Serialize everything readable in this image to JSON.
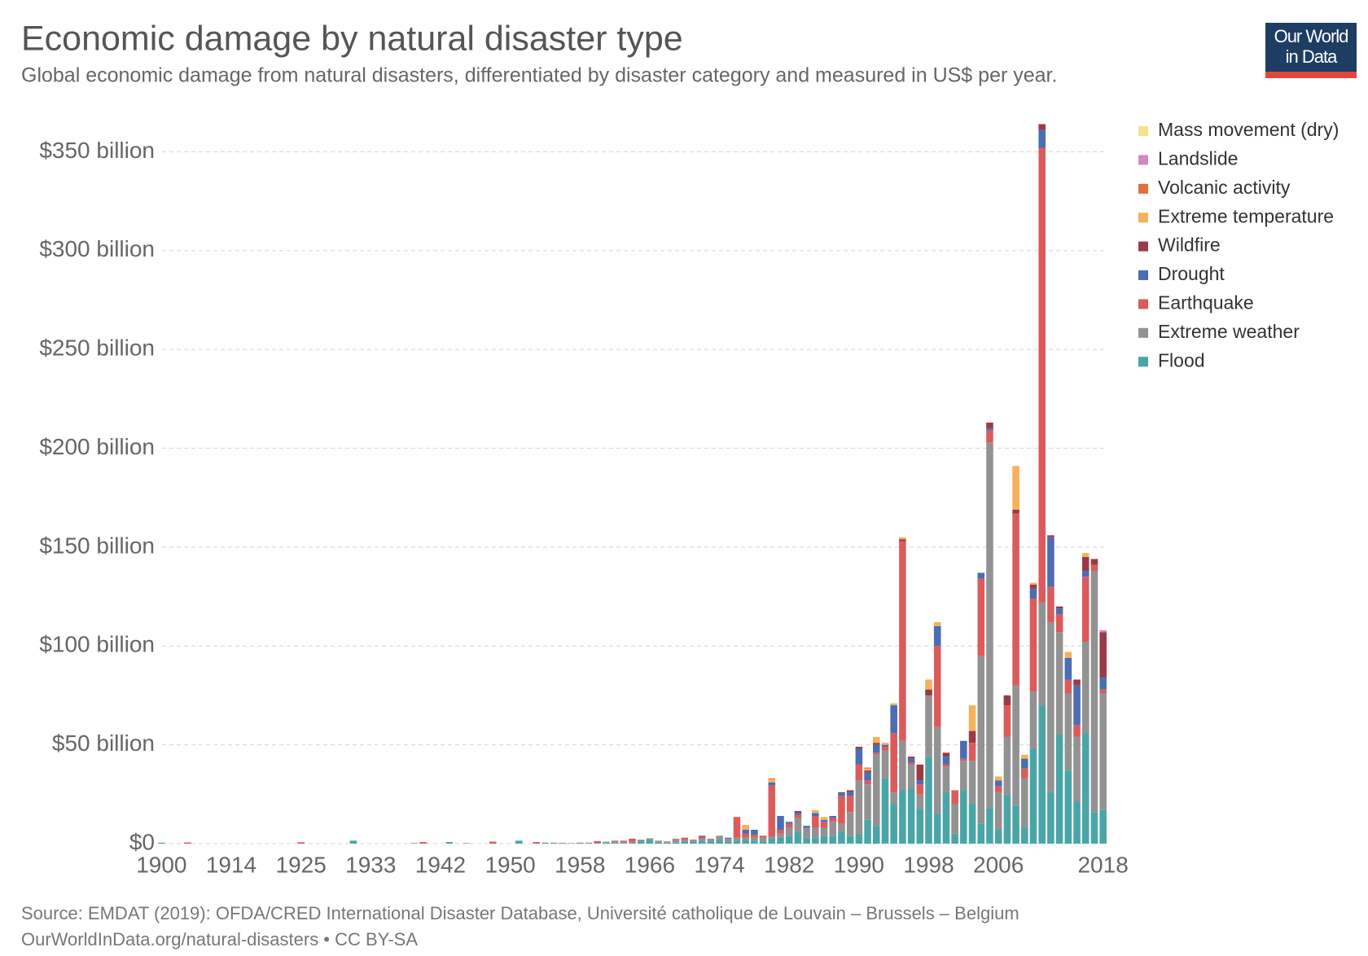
{
  "chart_data": {
    "type": "stacked-bar",
    "title": "Economic damage by natural disaster type",
    "subtitle": "Global economic damage from natural disasters, differentiated by disaster category and measured in US$ per year.",
    "source": "Source: EMDAT (2019): OFDA/CRED International Disaster Database, Université catholique de Louvain – Brussels – Belgium",
    "footer": "OurWorldInData.org/natural-disasters • CC BY-SA",
    "logo": [
      "Our World",
      "in Data"
    ],
    "legend": "right",
    "grid": true,
    "ylim": [
      0,
      365
    ],
    "yticks": [
      {
        "value": 0,
        "label": "$0"
      },
      {
        "value": 50,
        "label": "$50 billion"
      },
      {
        "value": 100,
        "label": "$100 billion"
      },
      {
        "value": 150,
        "label": "$150 billion"
      },
      {
        "value": 200,
        "label": "$200 billion"
      },
      {
        "value": 250,
        "label": "$250 billion"
      },
      {
        "value": 300,
        "label": "$300 billion"
      },
      {
        "value": 350,
        "label": "$350 billion"
      }
    ],
    "categories": [
      "1900",
      null,
      null,
      null,
      null,
      null,
      null,
      null,
      "1914",
      null,
      null,
      null,
      null,
      null,
      null,
      null,
      "1925",
      null,
      null,
      null,
      null,
      null,
      null,
      null,
      "1933",
      null,
      null,
      null,
      null,
      null,
      null,
      null,
      "1942",
      null,
      null,
      null,
      null,
      null,
      null,
      null,
      "1950",
      null,
      null,
      null,
      null,
      null,
      null,
      null,
      "1958",
      null,
      null,
      null,
      null,
      null,
      null,
      null,
      "1966",
      null,
      null,
      null,
      null,
      null,
      null,
      null,
      "1974",
      null,
      null,
      null,
      null,
      null,
      null,
      null,
      "1982",
      null,
      null,
      null,
      null,
      null,
      null,
      null,
      "1990",
      null,
      null,
      null,
      null,
      null,
      null,
      null,
      "1998",
      null,
      null,
      null,
      null,
      null,
      null,
      null,
      "2006",
      null,
      null,
      null,
      null,
      null,
      null,
      null,
      null,
      null,
      null,
      null,
      "2018"
    ],
    "series": [
      {
        "name": "Flood",
        "color": "#4aa5a7",
        "values": [
          0.5,
          0,
          0,
          0,
          0,
          0,
          0,
          0,
          0,
          0,
          0,
          0,
          0,
          0,
          0,
          0,
          0,
          0,
          0,
          0,
          0,
          0,
          1.5,
          0,
          0,
          0,
          0,
          0,
          0,
          0.3,
          0,
          0,
          0,
          0.8,
          0,
          0,
          0,
          0,
          0,
          0,
          0,
          1.5,
          0,
          0,
          0.5,
          0,
          0,
          0,
          0.2,
          0,
          0.3,
          0.5,
          0.5,
          0,
          0,
          1,
          2,
          0.5,
          0.5,
          0.5,
          1,
          1,
          1.5,
          1,
          2,
          1,
          1.5,
          2,
          1.5,
          1,
          2.5,
          3,
          4,
          6,
          3,
          3,
          4,
          4,
          6,
          4,
          5,
          12,
          9,
          33,
          20,
          27,
          28,
          18,
          44,
          15,
          26,
          5,
          27,
          20,
          10,
          18,
          7,
          25,
          19,
          8,
          48,
          70,
          26,
          55,
          37,
          21,
          56,
          16,
          17
        ]
      },
      {
        "name": "Extreme weather",
        "color": "#929292",
        "values": [
          0,
          0,
          0,
          0,
          0,
          0,
          0,
          0,
          0,
          0,
          0,
          0,
          0,
          0,
          0,
          0,
          0,
          0,
          0,
          0,
          0,
          0,
          0,
          0,
          0,
          0,
          0,
          0,
          0,
          0,
          0,
          0,
          0,
          0,
          0,
          0.3,
          0,
          0,
          0,
          0,
          0,
          0,
          0,
          0,
          0,
          0.5,
          0.4,
          0.3,
          0.3,
          0.5,
          0,
          0.5,
          0.5,
          1,
          1,
          1,
          0.7,
          1,
          0.3,
          2,
          1,
          0.5,
          1,
          1.5,
          2,
          1.5,
          1.5,
          1,
          1.5,
          2,
          1,
          2,
          4,
          7,
          5,
          5,
          4,
          7,
          4,
          12,
          27,
          18,
          36,
          14,
          6,
          25,
          12,
          7,
          31,
          44,
          13,
          15,
          15,
          22,
          85,
          185,
          19,
          29,
          61,
          25,
          29,
          52,
          86,
          52,
          39,
          33,
          46,
          122,
          59
        ]
      },
      {
        "name": "Earthquake",
        "color": "#db5b5b",
        "values": [
          0,
          0,
          0,
          0.6,
          0,
          0,
          0,
          0,
          0,
          0,
          0,
          0,
          0,
          0,
          0,
          0,
          0.7,
          0,
          0,
          0,
          0,
          0,
          0,
          0,
          0,
          0,
          0,
          0,
          0,
          0,
          0.8,
          0,
          0,
          0,
          0,
          0,
          0,
          0,
          1,
          0,
          0,
          0,
          0,
          0.8,
          0,
          0,
          0,
          0,
          0,
          0,
          1,
          0,
          0.5,
          0.5,
          1.5,
          0,
          0,
          0,
          0.3,
          0,
          1,
          0.5,
          1,
          0,
          0,
          0,
          10.5,
          2,
          1.5,
          1,
          26,
          2,
          2,
          1.5,
          0,
          6,
          3,
          2,
          14,
          8,
          8,
          2,
          1,
          2,
          30,
          101,
          1,
          5,
          0,
          41,
          1,
          7,
          1,
          9,
          39,
          6,
          3,
          16,
          87,
          5,
          47,
          230,
          18,
          9,
          7,
          6,
          33,
          3,
          2
        ]
      },
      {
        "name": "Drought",
        "color": "#4a6db3",
        "values": [
          0,
          0,
          0,
          0,
          0,
          0,
          0,
          0,
          0,
          0,
          0,
          0,
          0,
          0,
          0,
          0,
          0,
          0,
          0,
          0,
          0,
          0,
          0,
          0,
          0,
          0,
          0,
          0,
          0,
          0,
          0,
          0,
          0,
          0,
          0,
          0,
          0,
          0,
          0,
          0,
          0,
          0,
          0,
          0,
          0,
          0,
          0,
          0,
          0,
          0,
          0,
          0,
          0,
          0,
          0,
          0,
          0,
          0,
          0,
          0,
          0,
          0,
          0.5,
          0,
          0,
          0.5,
          0,
          2,
          2.5,
          0,
          1.5,
          7,
          1,
          1,
          1,
          1.5,
          1,
          1,
          1.5,
          2,
          8,
          4,
          4,
          1,
          14,
          0,
          2,
          2,
          0,
          10,
          4,
          0,
          9,
          0,
          3,
          1,
          3,
          0,
          0,
          5,
          5,
          9,
          25,
          3,
          11,
          20,
          3,
          0,
          6
        ]
      },
      {
        "name": "Wildfire",
        "color": "#9a3a48",
        "values": [
          0,
          0,
          0,
          0,
          0,
          0,
          0,
          0,
          0,
          0,
          0,
          0,
          0,
          0,
          0,
          0,
          0,
          0,
          0,
          0,
          0,
          0,
          0,
          0,
          0,
          0,
          0,
          0,
          0,
          0,
          0,
          0,
          0,
          0,
          0,
          0,
          0,
          0,
          0,
          0,
          0,
          0,
          0,
          0,
          0,
          0,
          0,
          0,
          0,
          0,
          0,
          0,
          0,
          0,
          0,
          0,
          0,
          0,
          0,
          0,
          0,
          0,
          0,
          0,
          0,
          0,
          0,
          0,
          0,
          0,
          0,
          0,
          0,
          1,
          0,
          0,
          0,
          0,
          0.5,
          1,
          1,
          1,
          1,
          0,
          0,
          1,
          1,
          8,
          3,
          0,
          2,
          0,
          0,
          6,
          0,
          3,
          0,
          5,
          2,
          0,
          2,
          3,
          1,
          1,
          0,
          3,
          7,
          3,
          23
        ]
      },
      {
        "name": "Extreme temperature",
        "color": "#f4b25c",
        "values": [
          0,
          0,
          0,
          0,
          0,
          0,
          0,
          0,
          0,
          0,
          0,
          0,
          0,
          0,
          0,
          0,
          0,
          0,
          0,
          0,
          0,
          0,
          0,
          0,
          0,
          0,
          0,
          0,
          0,
          0,
          0,
          0,
          0,
          0,
          0,
          0,
          0,
          0,
          0,
          0,
          0,
          0,
          0,
          0,
          0,
          0,
          0,
          0,
          0,
          0,
          0,
          0,
          0,
          0,
          0,
          0,
          0,
          0,
          0,
          0,
          0,
          0,
          0,
          0,
          0,
          0,
          0,
          2.5,
          0,
          0,
          1.5,
          0,
          0,
          0,
          0,
          1.5,
          1.5,
          0,
          0,
          0,
          0,
          1,
          3,
          1,
          1,
          1,
          0,
          0,
          5,
          2,
          0,
          0,
          0,
          13,
          0,
          0,
          2,
          0,
          22,
          2,
          1,
          0,
          0,
          0,
          3,
          0,
          2,
          0,
          0
        ]
      },
      {
        "name": "Volcanic activity",
        "color": "#e56e3d",
        "values": [
          0,
          0,
          0,
          0,
          0,
          0,
          0,
          0,
          0,
          0,
          0,
          0,
          0,
          0,
          0,
          0,
          0,
          0,
          0,
          0,
          0,
          0,
          0,
          0,
          0,
          0,
          0,
          0,
          0,
          0,
          0,
          0,
          0,
          0,
          0,
          0,
          0,
          0,
          0,
          0,
          0,
          0,
          0,
          0,
          0,
          0,
          0,
          0,
          0,
          0,
          0,
          0,
          0,
          0,
          0,
          0,
          0,
          0,
          0,
          0,
          0,
          0,
          0,
          0,
          0,
          0,
          0,
          0,
          0,
          0,
          0.5,
          0,
          0,
          0,
          0,
          0,
          0,
          0,
          0,
          0,
          0,
          0.5,
          0,
          0,
          0,
          0,
          0,
          0,
          0,
          0,
          0,
          0,
          0,
          0,
          0,
          0,
          0,
          0,
          0,
          0,
          0,
          0,
          0,
          0,
          0,
          0,
          0,
          0,
          0
        ]
      },
      {
        "name": "Landslide",
        "color": "#cf8bc0",
        "values": [
          0,
          0,
          0,
          0,
          0,
          0,
          0,
          0,
          0,
          0,
          0,
          0,
          0,
          0,
          0,
          0,
          0,
          0,
          0,
          0,
          0,
          0,
          0,
          0,
          0,
          0,
          0,
          0,
          0,
          0,
          0,
          0,
          0,
          0,
          0,
          0,
          0,
          0,
          0,
          0,
          0,
          0,
          0,
          0,
          0,
          0,
          0,
          0,
          0,
          0,
          0,
          0,
          0,
          0,
          0,
          0,
          0,
          0,
          0,
          0,
          0,
          0,
          0,
          0,
          0,
          0,
          0,
          0,
          0,
          0,
          0,
          0,
          0,
          0,
          0,
          0,
          0,
          0,
          0,
          0,
          0,
          0,
          0,
          0,
          0,
          0,
          0,
          0,
          0,
          0,
          0,
          0,
          0,
          0,
          0,
          0,
          0,
          0,
          0,
          0,
          0,
          0,
          0,
          0,
          0,
          0,
          0,
          0,
          1
        ]
      },
      {
        "name": "Mass movement (dry)",
        "color": "#f7e08d",
        "values": [
          0,
          0,
          0,
          0,
          0,
          0,
          0,
          0,
          0,
          0,
          0,
          0,
          0,
          0,
          0,
          0,
          0,
          0,
          0,
          0,
          0,
          0,
          0,
          0,
          0,
          0,
          0,
          0,
          0,
          0,
          0,
          0,
          0,
          0,
          0,
          0,
          0,
          0,
          0,
          0,
          0,
          0,
          0,
          0,
          0,
          0,
          0,
          0,
          0,
          0,
          0,
          0,
          0,
          0,
          0,
          0,
          0,
          0,
          0,
          0,
          0,
          0,
          0,
          0,
          0,
          0,
          0,
          0,
          0,
          0,
          0,
          0,
          0,
          0,
          0,
          0,
          0,
          0,
          0,
          0,
          0,
          0,
          0,
          0,
          0,
          0,
          0,
          0,
          0,
          0,
          0,
          0,
          0,
          0,
          0,
          0,
          0,
          0,
          0,
          0,
          0,
          0,
          0,
          0,
          0,
          0,
          0,
          0,
          0
        ]
      }
    ]
  }
}
